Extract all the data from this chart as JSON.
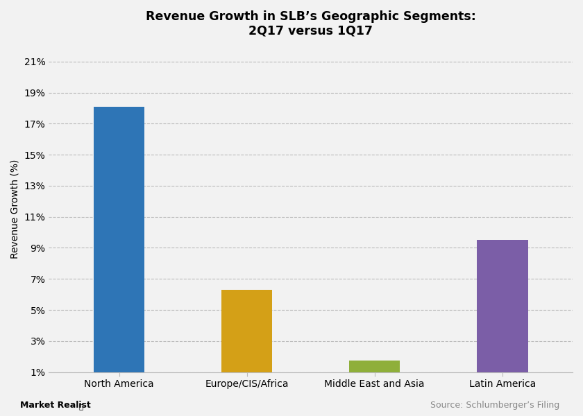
{
  "title_line1": "Revenue Growth in SLB’s Geographic Segments:",
  "title_line2": "2Q17 versus 1Q17",
  "categories": [
    "North America",
    "Europe/CIS/Africa",
    "Middle East and Asia",
    "Latin America"
  ],
  "values": [
    18.1,
    6.3,
    1.72,
    9.5
  ],
  "bar_colors": [
    "#2E75B6",
    "#D4A017",
    "#8FAF3A",
    "#7B5EA7"
  ],
  "ylabel": "Revenue Growth (%)",
  "yticks": [
    1,
    3,
    5,
    7,
    9,
    11,
    13,
    15,
    17,
    19,
    21
  ],
  "ymin": 1,
  "ymax": 22,
  "background_color": "#F2F2F2",
  "plot_bg_color": "#F2F2F2",
  "grid_color": "#BBBBBB",
  "footer_left": "Market Realist",
  "footer_right": "Source: Schlumberger’s Filing",
  "title_fontsize": 12.5,
  "axis_label_fontsize": 10,
  "tick_fontsize": 10,
  "footer_fontsize": 9,
  "bar_width": 0.4
}
